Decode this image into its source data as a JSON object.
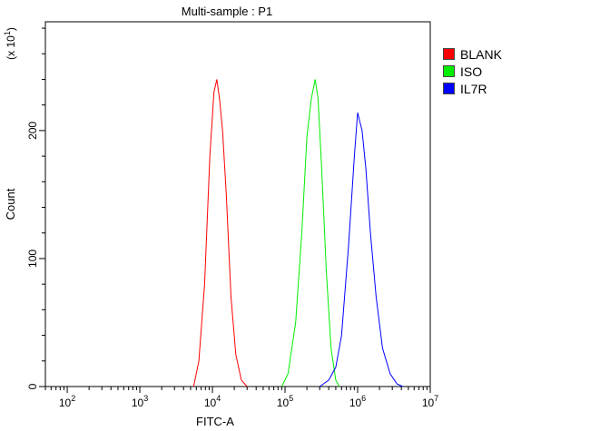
{
  "chart_data": {
    "type": "line",
    "title": "Multi-sample : P1",
    "xlabel": "FITC-A",
    "ylabel": "Count",
    "y_multiplier_label": "(x 10",
    "y_multiplier_exp": "1",
    "y_multiplier_close": ")",
    "x_scale": "log",
    "xlim": [
      50,
      10000000
    ],
    "ylim": [
      0,
      285
    ],
    "x_ticks": [
      {
        "base": "10",
        "exp": "2",
        "value": 100
      },
      {
        "base": "10",
        "exp": "3",
        "value": 1000
      },
      {
        "base": "10",
        "exp": "4",
        "value": 10000
      },
      {
        "base": "10",
        "exp": "5",
        "value": 100000
      },
      {
        "base": "10",
        "exp": "6",
        "value": 1000000
      },
      {
        "base": "10",
        "exp": "7",
        "value": 10000000
      }
    ],
    "y_ticks": [
      "0",
      "100",
      "200"
    ],
    "y_tick_values": [
      0,
      100,
      200
    ],
    "legend_position": "top-right",
    "series": [
      {
        "name": "BLANK",
        "color": "#ff0000",
        "x": [
          5500,
          6500,
          7800,
          9200,
          10500,
          11500,
          12500,
          13800,
          15500,
          18000,
          21000,
          25000,
          30000
        ],
        "y": [
          0,
          20,
          80,
          180,
          230,
          240,
          225,
          200,
          150,
          70,
          25,
          5,
          0
        ]
      },
      {
        "name": "ISO",
        "color": "#00ee00",
        "x": [
          90000,
          110000,
          140000,
          170000,
          200000,
          230000,
          260000,
          285000,
          320000,
          370000,
          430000,
          500000,
          560000
        ],
        "y": [
          0,
          10,
          50,
          120,
          195,
          225,
          240,
          225,
          170,
          90,
          30,
          5,
          0
        ]
      },
      {
        "name": "IL7R",
        "color": "#0000ff",
        "x": [
          300000,
          400000,
          500000,
          600000,
          750000,
          900000,
          1000000,
          1150000,
          1300000,
          1500000,
          1800000,
          2200000,
          2800000,
          3500000,
          4200000
        ],
        "y": [
          0,
          5,
          15,
          40,
          110,
          180,
          214,
          200,
          170,
          120,
          70,
          30,
          10,
          2,
          0
        ]
      }
    ]
  }
}
